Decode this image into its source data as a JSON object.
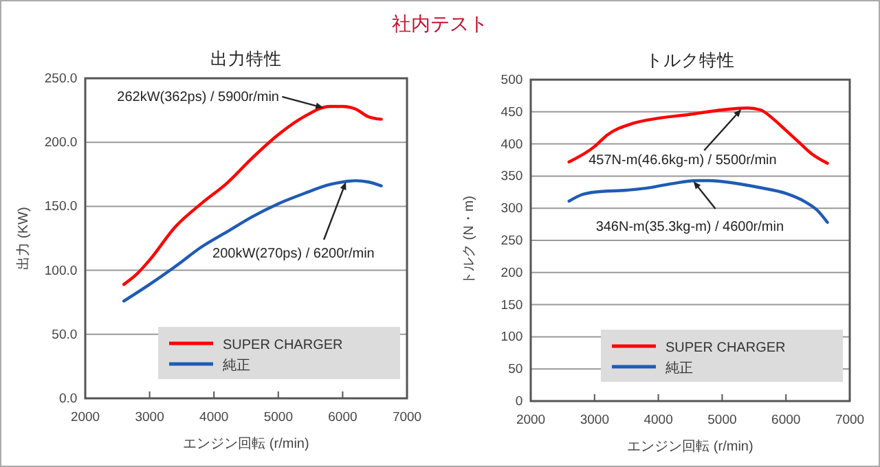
{
  "chart_data": [
    {
      "type": "line",
      "title": "出力特性",
      "xlabel": "エンジン回転 (r/min)",
      "ylabel": "出力 (KW)",
      "xlim": [
        2000,
        7000
      ],
      "xticks": [
        2000,
        3000,
        4000,
        5000,
        6000,
        7000
      ],
      "ylim": [
        0,
        250
      ],
      "yticks": [
        {
          "value": 0,
          "label": "0.0"
        },
        {
          "value": 50,
          "label": "50.0"
        },
        {
          "value": 100,
          "label": "100.0"
        },
        {
          "value": 150,
          "label": "150.0"
        },
        {
          "value": 200,
          "label": "200.0"
        },
        {
          "value": 250,
          "label": "250.0"
        }
      ],
      "grid": "y",
      "legend": "bottom right",
      "series": [
        {
          "name": "SUPER CHARGER",
          "color": "#ff0000",
          "x": [
            2600,
            2800,
            3000,
            3400,
            3800,
            4200,
            4600,
            5000,
            5400,
            5800,
            6000,
            6200,
            6400,
            6600
          ],
          "values": [
            89,
            97,
            108,
            134,
            152,
            168,
            188,
            206,
            220,
            228,
            228,
            226,
            220,
            218
          ]
        },
        {
          "name": "純正",
          "color": "#1f5bb5",
          "x": [
            2600,
            3000,
            3400,
            3800,
            4200,
            4600,
            5000,
            5400,
            5800,
            6000,
            6200,
            6400,
            6600
          ],
          "values": [
            76,
            89,
            103,
            118,
            130,
            142,
            152,
            160,
            167,
            169,
            170,
            169,
            166
          ]
        }
      ],
      "annotations": [
        "社内テスト",
        {
          "text": "262kW(362ps) / 5900r/min",
          "x": 5700,
          "y": 227
        },
        {
          "text": "200kW(270ps) / 6200r/min",
          "x": 6050,
          "y": 169
        }
      ]
    },
    {
      "type": "line",
      "title": "トルク特性",
      "xlabel": "エンジン回転 (r/min)",
      "ylabel": "トルク (N・m)",
      "xlim": [
        2000,
        7000
      ],
      "xticks": [
        2000,
        3000,
        4000,
        5000,
        6000,
        7000
      ],
      "ylim": [
        0,
        500
      ],
      "yticks": [
        0,
        50,
        100,
        150,
        200,
        250,
        300,
        350,
        400,
        450,
        500
      ],
      "grid": "y",
      "legend": "bottom right",
      "series": [
        {
          "name": "SUPER CHARGER",
          "color": "#ff0000",
          "x": [
            2600,
            3000,
            3200,
            3600,
            4000,
            4500,
            5000,
            5400,
            5600,
            5800,
            6000,
            6200,
            6400,
            6650
          ],
          "values": [
            372,
            396,
            414,
            432,
            440,
            446,
            453,
            456,
            453,
            439,
            421,
            403,
            385,
            370
          ]
        },
        {
          "name": "純正",
          "color": "#1f5bb5",
          "x": [
            2600,
            2800,
            3000,
            3500,
            3800,
            4200,
            4600,
            4800,
            5200,
            5600,
            6000,
            6300,
            6500,
            6650
          ],
          "values": [
            311,
            321,
            325,
            328,
            331,
            338,
            343,
            343,
            339,
            332,
            323,
            310,
            296,
            278
          ]
        }
      ],
      "annotations": [
        {
          "text": "457N-m(46.6kg-m) / 5500r/min",
          "x": 5300,
          "y": 454
        },
        {
          "text": "346N-m(35.3kg-m) / 4600r/min",
          "x": 4550,
          "y": 342
        }
      ]
    }
  ]
}
